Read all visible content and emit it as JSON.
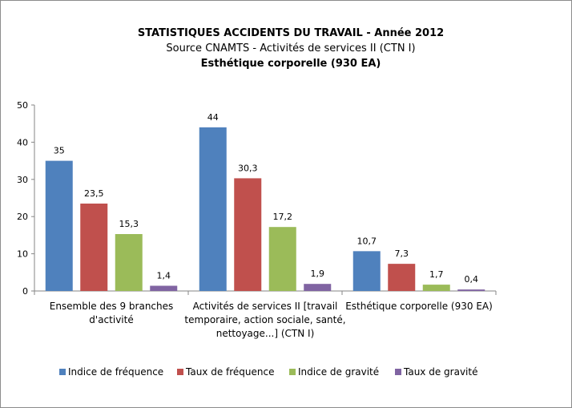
{
  "chart_data": {
    "type": "bar",
    "title": "STATISTIQUES ACCIDENTS DU TRAVAIL - Année 2012",
    "subtitle": "Source  CNAMTS - Activités de services II (CTN I)",
    "subtitle2": "Esthétique corporelle (930 EA)",
    "categories": [
      [
        "Ensemble des 9 branches",
        "d'activité"
      ],
      [
        "Activités de services II [travail",
        "temporaire, action sociale, santé,",
        "nettoyage...] (CTN I)"
      ],
      [
        "Esthétique corporelle (930 EA)"
      ]
    ],
    "series": [
      {
        "name": "Indice de fréquence",
        "values": [
          35,
          44,
          10.7
        ],
        "labels": [
          "35",
          "44",
          "10,7"
        ],
        "color": "#4F81BD"
      },
      {
        "name": "Taux de fréquence",
        "values": [
          23.5,
          30.3,
          7.3
        ],
        "labels": [
          "23,5",
          "30,3",
          "7,3"
        ],
        "color": "#C0504D"
      },
      {
        "name": "Indice de gravité",
        "values": [
          15.3,
          17.2,
          1.7
        ],
        "labels": [
          "15,3",
          "17,2",
          "1,7"
        ],
        "color": "#9BBB59"
      },
      {
        "name": "Taux de gravité",
        "values": [
          1.4,
          1.9,
          0.4
        ],
        "labels": [
          "1,4",
          "1,9",
          "0,4"
        ],
        "color": "#8064A2"
      }
    ],
    "ylim": [
      0,
      50
    ],
    "yticks": [
      0,
      10,
      20,
      30,
      40,
      50
    ],
    "grid": false,
    "legend": "bottom",
    "xlabel": "",
    "ylabel": ""
  }
}
